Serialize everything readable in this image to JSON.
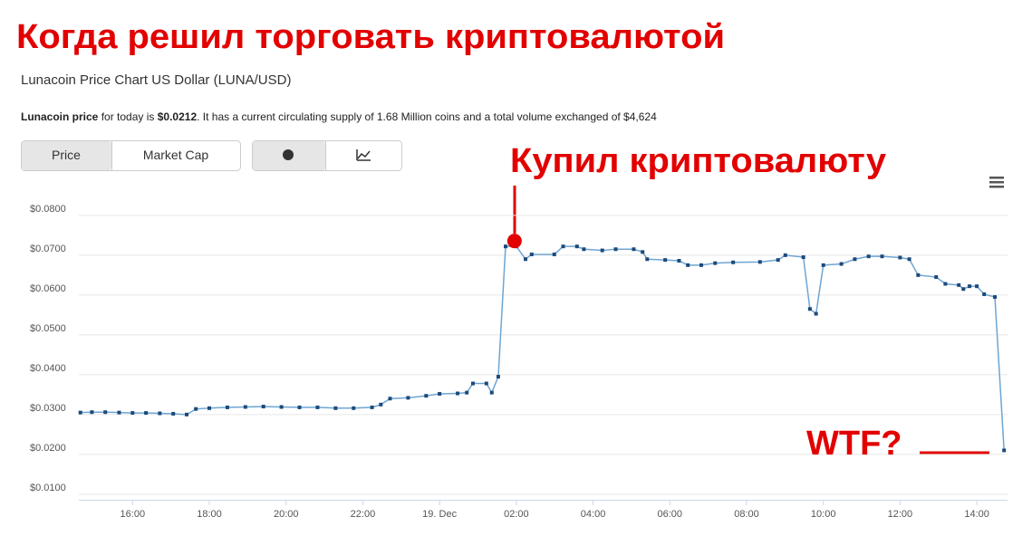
{
  "header": {
    "meme_title": "Когда решил торговать криптовалютой"
  },
  "info": {
    "title": "Lunacoin Price Chart US Dollar (LUNA/USD)",
    "description": [
      "Lunacoin price",
      " for today is ",
      "$0.0212",
      ". It has a current circulating supply of 1.68 Million coins and a total volume exchanged of $4,624"
    ]
  },
  "tabs": [
    "Price",
    "Market Cap"
  ],
  "chart_data": {
    "type": "line",
    "annotations": [
      "Купил криптовалюту",
      "WTF?"
    ],
    "x": [
      14.64,
      14.94,
      15.29,
      15.65,
      16.0,
      16.35,
      16.71,
      17.06,
      17.41,
      17.65,
      18.0,
      18.47,
      18.94,
      19.41,
      19.88,
      20.35,
      20.82,
      21.29,
      21.76,
      22.24,
      22.47,
      22.71,
      23.18,
      23.65,
      24.0,
      24.47,
      24.71,
      24.87,
      25.22,
      25.36,
      25.53,
      25.72,
      26.0,
      26.24,
      26.4,
      26.99,
      27.22,
      27.58,
      27.76,
      28.24,
      28.59,
      29.06,
      29.29,
      29.41,
      29.88,
      30.24,
      30.47,
      30.82,
      31.18,
      31.65,
      32.35,
      32.82,
      33.01,
      33.48,
      33.65,
      33.81,
      34.0,
      34.47,
      34.82,
      35.18,
      35.53,
      36.0,
      36.24,
      36.47,
      36.94,
      37.18,
      37.53,
      37.65,
      37.81,
      38.0,
      38.19,
      38.47,
      38.71
    ],
    "values": [
      0.0305,
      0.0306,
      0.0306,
      0.0305,
      0.0304,
      0.0304,
      0.0303,
      0.0302,
      0.03,
      0.0314,
      0.0316,
      0.0318,
      0.0319,
      0.032,
      0.0319,
      0.0318,
      0.0318,
      0.0316,
      0.0316,
      0.0318,
      0.0325,
      0.034,
      0.0342,
      0.0347,
      0.0352,
      0.0353,
      0.0355,
      0.0378,
      0.0378,
      0.0355,
      0.0395,
      0.0722,
      0.0722,
      0.069,
      0.0702,
      0.0702,
      0.0722,
      0.0722,
      0.0715,
      0.0712,
      0.0715,
      0.0715,
      0.0708,
      0.069,
      0.0688,
      0.0686,
      0.0675,
      0.0675,
      0.068,
      0.0682,
      0.0683,
      0.0688,
      0.07,
      0.0695,
      0.0565,
      0.0553,
      0.0675,
      0.0678,
      0.069,
      0.0697,
      0.0697,
      0.0694,
      0.069,
      0.065,
      0.0645,
      0.0628,
      0.0625,
      0.0615,
      0.0622,
      0.0622,
      0.0602,
      0.0595,
      0.021
    ],
    "color": "#6fa5d3",
    "marker_color": "#1c4a7a",
    "xlim": [
      14.6,
      38.8
    ],
    "xticks": [
      {
        "value": 16,
        "label": "16:00"
      },
      {
        "value": 18,
        "label": "18:00"
      },
      {
        "value": 20,
        "label": "20:00"
      },
      {
        "value": 22,
        "label": "22:00"
      },
      {
        "value": 24,
        "label": "19. Dec"
      },
      {
        "value": 26,
        "label": "02:00"
      },
      {
        "value": 28,
        "label": "04:00"
      },
      {
        "value": 30,
        "label": "06:00"
      },
      {
        "value": 32,
        "label": "08:00"
      },
      {
        "value": 34,
        "label": "10:00"
      },
      {
        "value": 36,
        "label": "12:00"
      },
      {
        "value": 38,
        "label": "14:00"
      }
    ],
    "ylim": [
      0.0086,
      0.0886
    ],
    "yticks": [
      {
        "value": 0.01,
        "label": "$0.0100"
      },
      {
        "value": 0.02,
        "label": "$0.0200"
      },
      {
        "value": 0.03,
        "label": "$0.0300"
      },
      {
        "value": 0.04,
        "label": "$0.0400"
      },
      {
        "value": 0.05,
        "label": "$0.0500"
      },
      {
        "value": 0.06,
        "label": "$0.0600"
      },
      {
        "value": 0.07,
        "label": "$0.0700"
      },
      {
        "value": 0.08,
        "label": "$0.0800"
      }
    ],
    "grid": true
  }
}
